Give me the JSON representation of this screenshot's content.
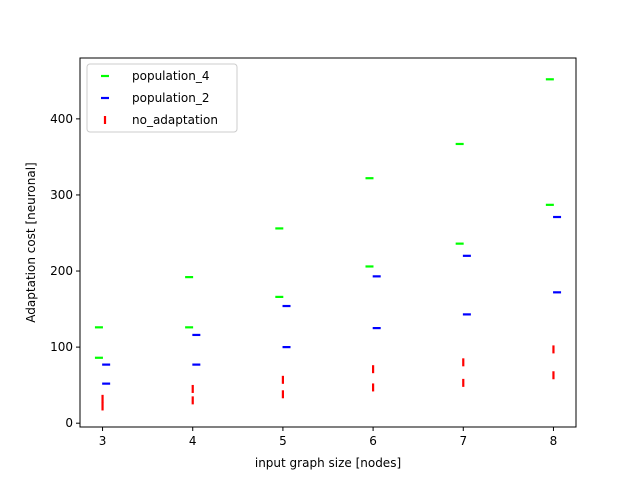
{
  "chart_data": {
    "type": "scatter",
    "xlabel": "input graph size [nodes]",
    "ylabel": "Adaptation cost [neuronal]",
    "xlim": [
      2.75,
      8.25
    ],
    "ylim": [
      -5,
      480
    ],
    "xticks": [
      3,
      4,
      5,
      6,
      7,
      8
    ],
    "yticks": [
      0,
      100,
      200,
      300,
      400
    ],
    "grid": false,
    "legend_position": "top-left",
    "series": [
      {
        "name": "population_4",
        "color": "#00ff00",
        "marker": "horizontal-dash",
        "x_offset": -0.04,
        "points": [
          {
            "x": 3,
            "y": 86
          },
          {
            "x": 3,
            "y": 126
          },
          {
            "x": 4,
            "y": 126
          },
          {
            "x": 4,
            "y": 192
          },
          {
            "x": 5,
            "y": 166
          },
          {
            "x": 5,
            "y": 256
          },
          {
            "x": 6,
            "y": 206
          },
          {
            "x": 6,
            "y": 322
          },
          {
            "x": 7,
            "y": 236
          },
          {
            "x": 7,
            "y": 367
          },
          {
            "x": 8,
            "y": 287
          },
          {
            "x": 8,
            "y": 452
          }
        ]
      },
      {
        "name": "population_2",
        "color": "#0000ff",
        "marker": "horizontal-dash",
        "x_offset": 0.04,
        "points": [
          {
            "x": 3,
            "y": 52
          },
          {
            "x": 3,
            "y": 77
          },
          {
            "x": 4,
            "y": 77
          },
          {
            "x": 4,
            "y": 116
          },
          {
            "x": 5,
            "y": 100
          },
          {
            "x": 5,
            "y": 154
          },
          {
            "x": 6,
            "y": 125
          },
          {
            "x": 6,
            "y": 193
          },
          {
            "x": 7,
            "y": 143
          },
          {
            "x": 7,
            "y": 220
          },
          {
            "x": 8,
            "y": 172
          },
          {
            "x": 8,
            "y": 271
          }
        ]
      },
      {
        "name": "no_adaptation",
        "color": "#ff0000",
        "marker": "vertical-dash",
        "x_offset": 0,
        "points": [
          {
            "x": 3,
            "y": 22
          },
          {
            "x": 3,
            "y": 32
          },
          {
            "x": 4,
            "y": 30
          },
          {
            "x": 4,
            "y": 45
          },
          {
            "x": 5,
            "y": 38
          },
          {
            "x": 5,
            "y": 57
          },
          {
            "x": 6,
            "y": 47
          },
          {
            "x": 6,
            "y": 71
          },
          {
            "x": 7,
            "y": 53
          },
          {
            "x": 7,
            "y": 80
          },
          {
            "x": 8,
            "y": 63
          },
          {
            "x": 8,
            "y": 97
          }
        ]
      }
    ]
  }
}
